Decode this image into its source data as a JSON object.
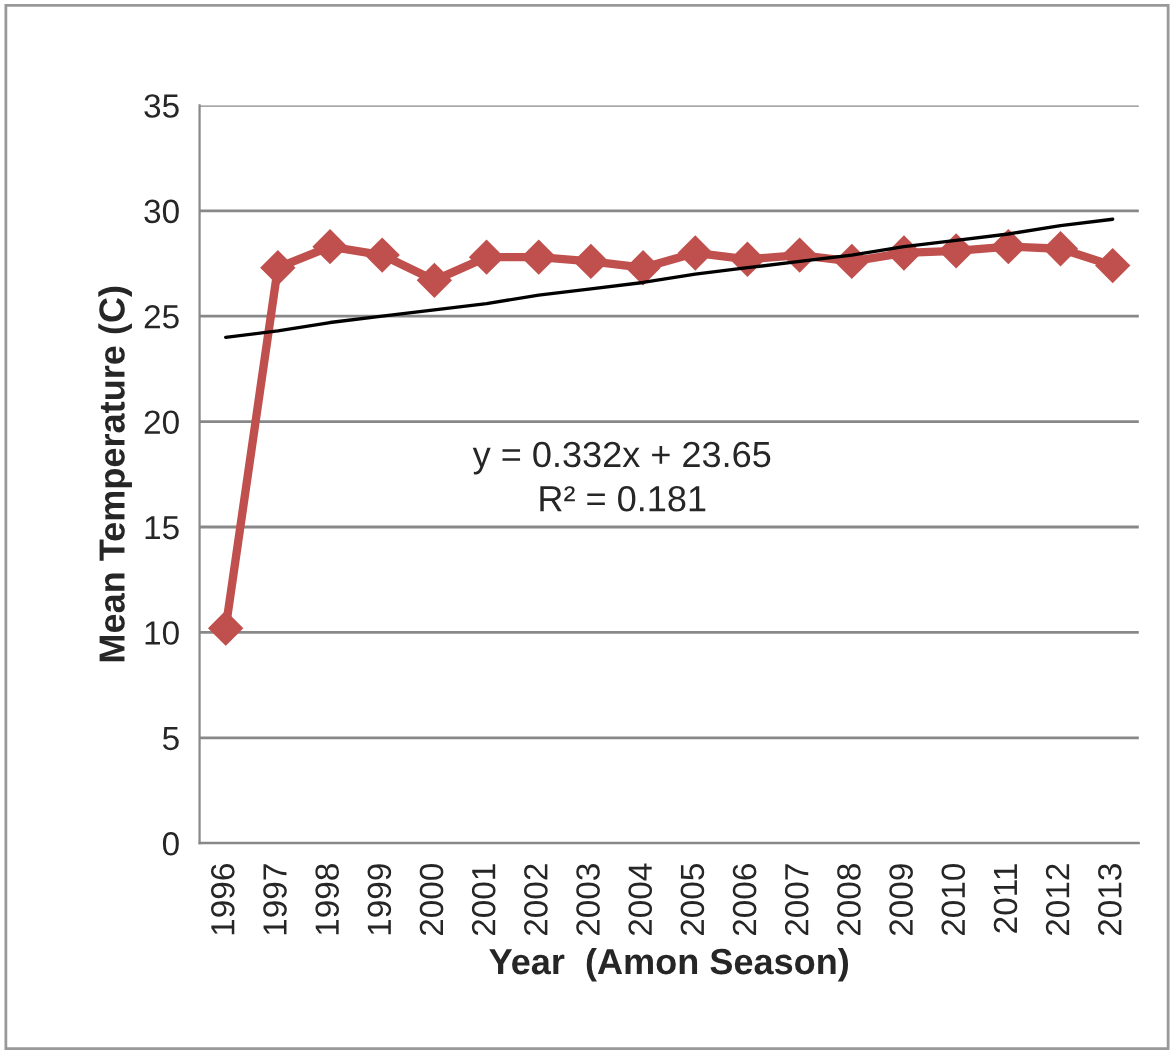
{
  "chart_data": {
    "type": "line",
    "xlabel": "Year  (Amon Season)",
    "ylabel": "Mean Temperature (C)",
    "categories": [
      "1996",
      "1997",
      "1998",
      "1999",
      "2000",
      "2001",
      "2002",
      "2003",
      "2004",
      "2005",
      "2006",
      "2007",
      "2008",
      "2009",
      "2010",
      "2011",
      "2012",
      "2013"
    ],
    "series": [
      {
        "color": "#c0504d",
        "marker": "diamond",
        "values": [
          10.2,
          27.3,
          28.3,
          27.9,
          26.7,
          27.8,
          27.8,
          27.6,
          27.3,
          28.0,
          27.7,
          27.9,
          27.6,
          28.0,
          28.1,
          28.3,
          28.2,
          27.4
        ]
      },
      {
        "type": "line",
        "color": "#000000",
        "marker": "none",
        "values": [
          24.0,
          24.3,
          24.7,
          25.0,
          25.3,
          25.6,
          26.0,
          26.3,
          26.6,
          27.0,
          27.3,
          27.6,
          27.9,
          28.3,
          28.6,
          28.9,
          29.3,
          29.6
        ]
      }
    ],
    "ylim": [
      0,
      35
    ],
    "yticks": [
      0,
      5,
      10,
      15,
      20,
      25,
      30,
      35
    ],
    "grid": "y",
    "legend": false,
    "annotations": [
      "y = 0.332x + 23.65",
      "R² = 0.181"
    ]
  }
}
